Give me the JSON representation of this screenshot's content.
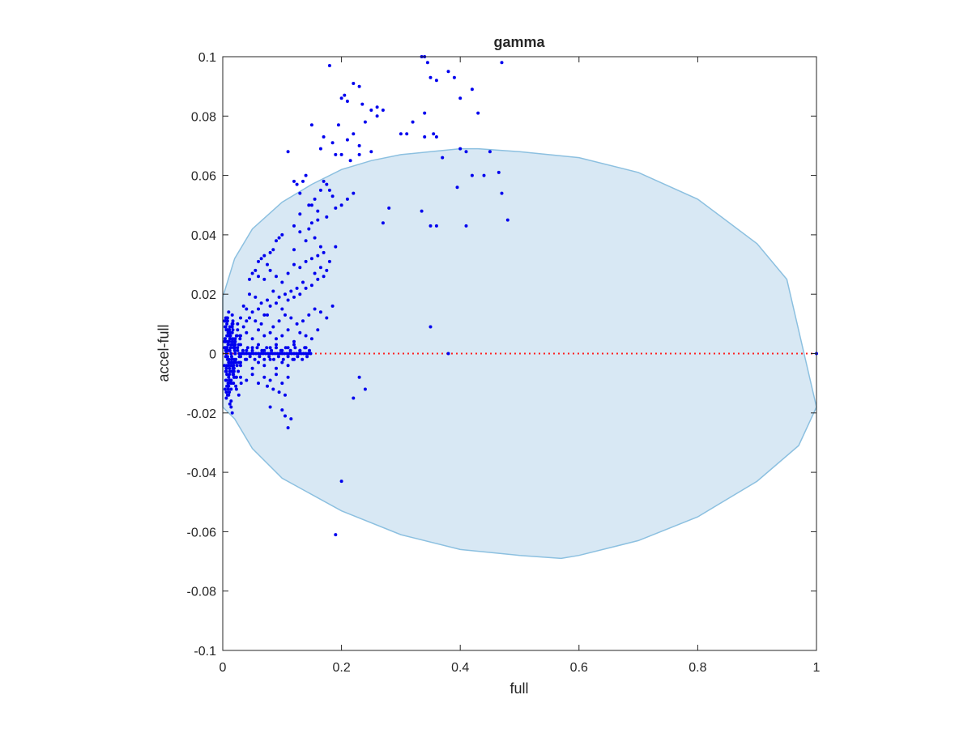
{
  "chart_data": {
    "type": "scatter",
    "title": "gamma",
    "xlabel": "full",
    "ylabel": "accel-full",
    "xlim": [
      0,
      1
    ],
    "ylim": [
      -0.1,
      0.1
    ],
    "x_ticks": [
      "0",
      "0.2",
      "0.4",
      "0.6",
      "0.8",
      "1"
    ],
    "y_ticks": [
      "-0.1",
      "-0.08",
      "-0.06",
      "-0.04",
      "-0.02",
      "0",
      "0.02",
      "0.04",
      "0.06",
      "0.08",
      "0.1"
    ],
    "grid": false,
    "legend": "none",
    "colors": {
      "points": "#0000ee",
      "reference_line": "#ff2020",
      "ellipse_fill": "#d8e8f4",
      "ellipse_edge": "#8cc0e0",
      "axes": "#262626"
    },
    "ellipse_boundary": {
      "x": [
        0.0,
        0.02,
        0.05,
        0.1,
        0.15,
        0.2,
        0.25,
        0.3,
        0.35,
        0.4,
        0.43,
        0.5,
        0.6,
        0.7,
        0.8,
        0.9,
        0.95,
        1.0,
        0.97,
        0.9,
        0.8,
        0.7,
        0.6,
        0.57,
        0.5,
        0.4,
        0.3,
        0.2,
        0.1,
        0.05,
        0.02,
        0.0
      ],
      "y": [
        0.019,
        0.032,
        0.042,
        0.051,
        0.057,
        0.062,
        0.065,
        0.067,
        0.068,
        0.069,
        0.069,
        0.068,
        0.066,
        0.061,
        0.052,
        0.037,
        0.025,
        -0.018,
        -0.031,
        -0.043,
        -0.055,
        -0.063,
        -0.068,
        -0.069,
        -0.068,
        -0.066,
        -0.061,
        -0.053,
        -0.042,
        -0.032,
        -0.022,
        -0.018
      ]
    },
    "reference_line": {
      "y": 0,
      "style": "dotted"
    },
    "series": [
      {
        "x": [
          0.18,
          0.2,
          0.22,
          0.23,
          0.205,
          0.21,
          0.235,
          0.25,
          0.26,
          0.27,
          0.26,
          0.24,
          0.22,
          0.195,
          0.185,
          0.17,
          0.15,
          0.165,
          0.19,
          0.21,
          0.23,
          0.25,
          0.2,
          0.215,
          0.23,
          0.335,
          0.345,
          0.34,
          0.35,
          0.36,
          0.39,
          0.4,
          0.38,
          0.42,
          0.47,
          0.43,
          0.34,
          0.32,
          0.3,
          0.31,
          0.34,
          0.36,
          0.355,
          0.37,
          0.4,
          0.41,
          0.42,
          0.45,
          0.465,
          0.395,
          0.44,
          0.47,
          0.48,
          0.36,
          0.35,
          0.41,
          0.335,
          0.28,
          0.27,
          0.11,
          0.12,
          0.125,
          0.135,
          0.14,
          0.13,
          0.15,
          0.155,
          0.165,
          0.16,
          0.17,
          0.175,
          0.18,
          0.185,
          0.2,
          0.21,
          0.22,
          0.19,
          0.175,
          0.16,
          0.145,
          0.15,
          0.13,
          0.12,
          0.14,
          0.155,
          0.165,
          0.12,
          0.13,
          0.145,
          0.1,
          0.09,
          0.095,
          0.08,
          0.085,
          0.07,
          0.065,
          0.06,
          0.075,
          0.055,
          0.05,
          0.045,
          0.06,
          0.07,
          0.08,
          0.09,
          0.1,
          0.11,
          0.12,
          0.13,
          0.14,
          0.15,
          0.16,
          0.17,
          0.18,
          0.19,
          0.175,
          0.165,
          0.155,
          0.135,
          0.125,
          0.115,
          0.105,
          0.095,
          0.085,
          0.075,
          0.065,
          0.055,
          0.045,
          0.035,
          0.04,
          0.05,
          0.06,
          0.07,
          0.08,
          0.09,
          0.1,
          0.11,
          0.12,
          0.13,
          0.14,
          0.15,
          0.16,
          0.17,
          0.04,
          0.03,
          0.025,
          0.035,
          0.045,
          0.055,
          0.065,
          0.075,
          0.085,
          0.095,
          0.105,
          0.115,
          0.125,
          0.135,
          0.145,
          0.155,
          0.165,
          0.175,
          0.185,
          0.03,
          0.04,
          0.05,
          0.06,
          0.07,
          0.08,
          0.09,
          0.1,
          0.11,
          0.12,
          0.13,
          0.14,
          0.15,
          0.16,
          0.02,
          0.03,
          0.04,
          0.05,
          0.06,
          0.07,
          0.08,
          0.09,
          0.1,
          0.11,
          0.12,
          0.13,
          0.14,
          0.02,
          0.03,
          0.04,
          0.05,
          0.06,
          0.07,
          0.08,
          0.09,
          0.1,
          0.11,
          0.12,
          0.03,
          0.04,
          0.05,
          0.06,
          0.07,
          0.08,
          0.09,
          0.1,
          0.11,
          0.075,
          0.085,
          0.095,
          0.105,
          0.08,
          0.1,
          0.105,
          0.115,
          0.11,
          0.2,
          0.19,
          0.23,
          0.22,
          0.24,
          0.005,
          0.006,
          0.007,
          0.008,
          0.009,
          0.01,
          0.011,
          0.012,
          0.013,
          0.014,
          0.015,
          0.016,
          0.017,
          0.018,
          0.019,
          0.02,
          0.021,
          0.022,
          0.023,
          0.024,
          0.025,
          0.026,
          0.027,
          0.028,
          0.029,
          0.03,
          0.005,
          0.007,
          0.009,
          0.011,
          0.013,
          0.015,
          0.017,
          0.019,
          0.021,
          0.023,
          0.025,
          0.027,
          0.029,
          0.031,
          0.005,
          0.007,
          0.009,
          0.011,
          0.013,
          0.015,
          0.017,
          0.019,
          0.021,
          0.023,
          0.025,
          0.027,
          0.004,
          0.006,
          0.008,
          0.01,
          0.012,
          0.014,
          0.016,
          0.018,
          0.02,
          0.022,
          0.024,
          0.004,
          0.006,
          0.008,
          0.01,
          0.012,
          0.014,
          0.016,
          0.018,
          0.02,
          0.022,
          0.006,
          0.008,
          0.01,
          0.012,
          0.014,
          0.016,
          0.018,
          0.02,
          0.008,
          0.01,
          0.012,
          0.014,
          0.016,
          0.018,
          0.01,
          0.012,
          0.014,
          0.016,
          0.003,
          0.004,
          0.005,
          0.006,
          0.007,
          0.008,
          0.009,
          0.01,
          0.011,
          0.012,
          0.013,
          0.014,
          0.015,
          0.016,
          0.017,
          0.018,
          0.019,
          0.02,
          0.021,
          0.022,
          0.003,
          0.005,
          0.007,
          0.009,
          0.011,
          0.013,
          0.015,
          0.017,
          0.019,
          0.021,
          0.003,
          0.005,
          0.007,
          0.009,
          0.011,
          0.013,
          0.015,
          0.017,
          0.019,
          0.003,
          0.005,
          0.007,
          0.009,
          0.011,
          0.013,
          0.015,
          0.017,
          0.004,
          0.006,
          0.008,
          0.01,
          0.012,
          0.014,
          0.004,
          0.006,
          0.008,
          0.01,
          0.012,
          0.005,
          0.007,
          0.009,
          0.011,
          0.006,
          0.008,
          0.01,
          0.007,
          0.009,
          0.028,
          0.032,
          0.036,
          0.04,
          0.044,
          0.048,
          0.052,
          0.056,
          0.06,
          0.064,
          0.068,
          0.072,
          0.076,
          0.08,
          0.084,
          0.088,
          0.092,
          0.096,
          0.1,
          0.104,
          0.108,
          0.112,
          0.116,
          0.12,
          0.124,
          0.128,
          0.132,
          0.136,
          0.14,
          0.144,
          0.148,
          0.03,
          0.034,
          0.038,
          0.042,
          0.046,
          0.05,
          0.054,
          0.058,
          0.062,
          0.066,
          0.07,
          0.074,
          0.078,
          0.082,
          0.086,
          0.09,
          0.094,
          0.098,
          0.102,
          0.106,
          0.11,
          0.114,
          0.118,
          0.122,
          0.126,
          0.13,
          0.134,
          0.138,
          0.142,
          0.146,
          0.35,
          0.38,
          1.0
        ],
        "y": [
          0.097,
          0.086,
          0.091,
          0.09,
          0.087,
          0.085,
          0.084,
          0.082,
          0.083,
          0.082,
          0.08,
          0.078,
          0.074,
          0.077,
          0.071,
          0.073,
          0.077,
          0.069,
          0.067,
          0.072,
          0.07,
          0.068,
          0.067,
          0.065,
          0.067,
          0.1,
          0.098,
          0.1,
          0.093,
          0.092,
          0.093,
          0.086,
          0.095,
          0.089,
          0.098,
          0.081,
          0.081,
          0.078,
          0.074,
          0.074,
          0.073,
          0.073,
          0.074,
          0.066,
          0.069,
          0.068,
          0.06,
          0.068,
          0.061,
          0.056,
          0.06,
          0.054,
          0.045,
          0.043,
          0.043,
          0.043,
          0.048,
          0.049,
          0.044,
          0.068,
          0.058,
          0.057,
          0.058,
          0.06,
          0.054,
          0.05,
          0.052,
          0.055,
          0.048,
          0.058,
          0.057,
          0.055,
          0.053,
          0.05,
          0.052,
          0.054,
          0.049,
          0.046,
          0.045,
          0.05,
          0.044,
          0.047,
          0.043,
          0.038,
          0.039,
          0.036,
          0.035,
          0.041,
          0.042,
          0.04,
          0.038,
          0.039,
          0.034,
          0.035,
          0.033,
          0.032,
          0.031,
          0.03,
          0.028,
          0.027,
          0.025,
          0.026,
          0.025,
          0.028,
          0.026,
          0.024,
          0.027,
          0.03,
          0.029,
          0.031,
          0.032,
          0.033,
          0.034,
          0.031,
          0.036,
          0.028,
          0.029,
          0.027,
          0.024,
          0.022,
          0.021,
          0.02,
          0.019,
          0.021,
          0.018,
          0.017,
          0.019,
          0.02,
          0.016,
          0.015,
          0.014,
          0.015,
          0.013,
          0.016,
          0.017,
          0.015,
          0.018,
          0.019,
          0.02,
          0.022,
          0.023,
          0.025,
          0.026,
          0.011,
          0.012,
          0.01,
          0.009,
          0.012,
          0.011,
          0.01,
          0.013,
          0.009,
          0.011,
          0.013,
          0.012,
          0.01,
          0.011,
          0.013,
          0.015,
          0.014,
          0.012,
          0.016,
          0.006,
          0.007,
          0.005,
          0.008,
          0.006,
          0.007,
          0.005,
          0.006,
          0.008,
          0.004,
          0.007,
          0.006,
          0.005,
          0.008,
          0.002,
          0.003,
          0.001,
          0.002,
          0.003,
          0.001,
          0.002,
          0.003,
          0.001,
          0.002,
          0.003,
          0.001,
          0.002,
          -0.003,
          -0.004,
          -0.002,
          -0.005,
          -0.003,
          -0.004,
          -0.002,
          -0.005,
          -0.003,
          -0.004,
          -0.002,
          -0.008,
          -0.009,
          -0.007,
          -0.01,
          -0.008,
          -0.009,
          -0.007,
          -0.01,
          -0.008,
          -0.011,
          -0.012,
          -0.013,
          -0.014,
          -0.018,
          -0.019,
          -0.021,
          -0.022,
          -0.025,
          -0.043,
          -0.061,
          -0.008,
          -0.015,
          -0.012,
          0.004,
          0.008,
          0.002,
          -0.002,
          0.006,
          -0.004,
          0.001,
          0.005,
          -0.006,
          0.003,
          -0.001,
          0.007,
          -0.005,
          0.002,
          -0.003,
          0.004,
          0.0,
          -0.002,
          0.006,
          -0.004,
          0.001,
          -0.006,
          0.003,
          -0.001,
          0.005,
          -0.003,
          0.009,
          -0.007,
          0.003,
          -0.009,
          0.007,
          -0.002,
          0.01,
          -0.005,
          0.004,
          -0.008,
          0.008,
          -0.003,
          0.006,
          -0.01,
          0.012,
          -0.011,
          0.001,
          -0.013,
          0.009,
          -0.006,
          0.011,
          -0.008,
          0.005,
          -0.012,
          0.002,
          -0.014,
          0.005,
          -0.006,
          0.008,
          -0.01,
          0.001,
          -0.004,
          0.01,
          -0.007,
          0.003,
          -0.011,
          0.006,
          0.011,
          -0.009,
          0.004,
          -0.002,
          0.007,
          -0.012,
          0.009,
          -0.005,
          0.002,
          -0.008,
          -0.015,
          0.012,
          -0.003,
          0.006,
          -0.016,
          0.01,
          -0.01,
          0.003,
          -0.014,
          0.014,
          -0.006,
          -0.018,
          0.013,
          -0.004,
          0.008,
          -0.017,
          -0.009,
          -0.02,
          0.011,
          -0.012,
          0.001,
          0.0,
          0.002,
          -0.001,
          0.003,
          -0.002,
          0.001,
          -0.003,
          0.002,
          0.0,
          -0.001,
          0.004,
          -0.004,
          0.003,
          -0.002,
          0.001,
          0.0,
          -0.003,
          0.002,
          -0.001,
          0.001,
          0.004,
          -0.005,
          0.006,
          -0.002,
          0.005,
          -0.006,
          0.003,
          -0.004,
          0.002,
          -0.004,
          0.007,
          -0.007,
          0.005,
          -0.003,
          0.008,
          -0.008,
          0.004,
          -0.006,
          0.006,
          -0.002,
          0.008,
          -0.009,
          0.003,
          -0.007,
          0.009,
          -0.005,
          0.001,
          -0.008,
          0.009,
          -0.01,
          0.005,
          -0.006,
          0.011,
          -0.011,
          0.007,
          -0.009,
          0.01,
          -0.012,
          0.004,
          -0.013,
          0.008,
          -0.014,
          0.012,
          -0.01,
          0.0,
          0.0,
          0.0,
          0.0,
          0.0,
          0.0,
          0.0,
          0.0,
          0.0,
          0.0,
          0.0,
          0.0,
          0.0,
          0.0,
          0.0,
          0.0,
          0.0,
          0.0,
          0.0,
          0.0,
          0.0,
          0.0,
          0.0,
          0.0,
          0.0,
          0.0,
          0.0,
          0.0,
          0.0,
          0.0,
          0.0,
          -0.001,
          0.001,
          -0.002,
          0.002,
          -0.001,
          0.001,
          -0.002,
          0.002,
          -0.001,
          0.001,
          -0.002,
          0.002,
          -0.001,
          0.001,
          -0.002,
          0.002,
          -0.001,
          0.001,
          -0.002,
          0.002,
          -0.001,
          0.001,
          -0.002,
          0.002,
          -0.001,
          0.001,
          -0.002,
          0.002,
          -0.001,
          0.001,
          0.009,
          0.0,
          0.0
        ]
      }
    ]
  }
}
